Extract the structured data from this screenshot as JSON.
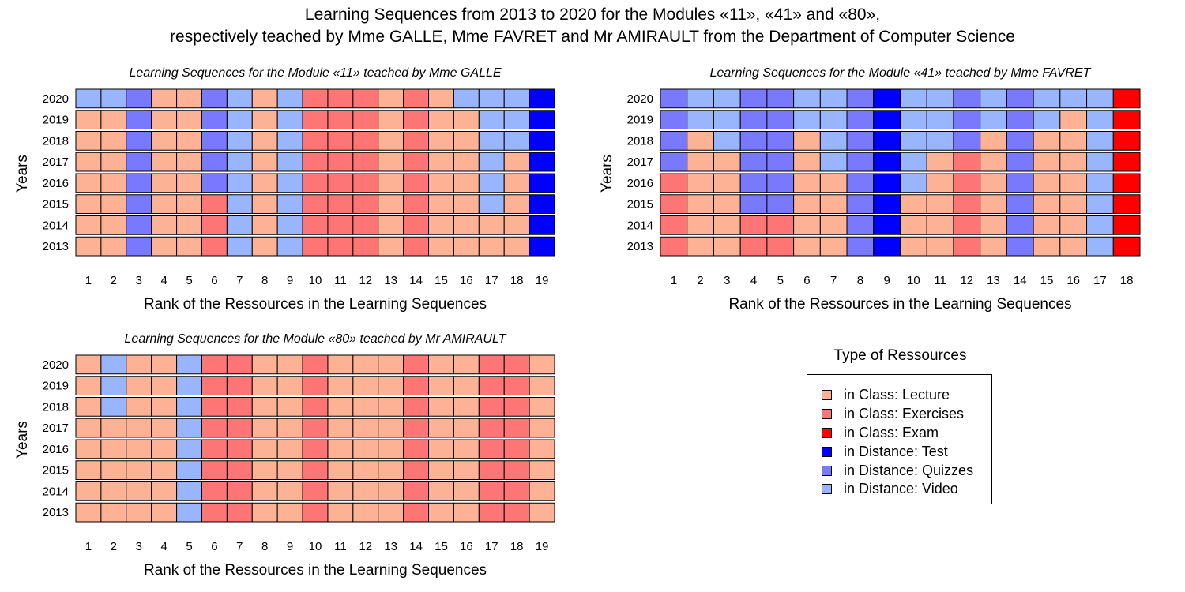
{
  "title_line1": "Learning Sequences from 2013 to 2020 for the Modules «11», «41» and «80»,",
  "title_line2": "respectively teached by Mme GALLE, Mme FAVRET and Mr AMIRAULT from the Department of Computer Science",
  "legend": {
    "title": "Type of Ressources",
    "items": [
      {
        "key": "L",
        "label": "in Class: Lecture",
        "color": "#FDB296"
      },
      {
        "key": "E",
        "label": "in Class: Exercises",
        "color": "#FE7575"
      },
      {
        "key": "X",
        "label": "in Class: Exam",
        "color": "#FE0000"
      },
      {
        "key": "T",
        "label": "in Distance: Test",
        "color": "#0000FE"
      },
      {
        "key": "Q",
        "label": "in Distance: Quizzes",
        "color": "#7979FD"
      },
      {
        "key": "V",
        "label": "in Distance: Video",
        "color": "#99B5FD"
      }
    ]
  },
  "chart_data": [
    {
      "type": "heatmap",
      "title": "Learning Sequences for the Module «11» teached by Mme GALLE",
      "xlabel": "Rank of the Ressources in the Learning Sequences",
      "ylabel": "Years",
      "x": [
        1,
        2,
        3,
        4,
        5,
        6,
        7,
        8,
        9,
        10,
        11,
        12,
        13,
        14,
        15,
        16,
        17,
        18,
        19
      ],
      "y": [
        2020,
        2019,
        2018,
        2017,
        2016,
        2015,
        2014,
        2013
      ],
      "rows": [
        "VVQLLQVLVEEELELVVVT",
        "LLQLLQVLVEEELELLVVT",
        "LLQLLQVLVEEELELLVVT",
        "LLQLLQVLVEEELELLVLT",
        "LLQLLQVLVEEELELLVLT",
        "LLQLLEVLVEEELELLVLT",
        "LLQLLEVLVEEELELLLLT",
        "LLQLLEVLVEEELELLLLT"
      ]
    },
    {
      "type": "heatmap",
      "title": "Learning Sequences for the Module «41» teached by Mme FAVRET",
      "xlabel": "Rank of the Ressources in the Learning Sequences",
      "ylabel": "Years",
      "x": [
        1,
        2,
        3,
        4,
        5,
        6,
        7,
        8,
        9,
        10,
        11,
        12,
        13,
        14,
        15,
        16,
        17,
        18
      ],
      "y": [
        2020,
        2019,
        2018,
        2017,
        2016,
        2015,
        2014,
        2013
      ],
      "rows": [
        "QVVQQVVQTVVQVQVVVX",
        "QVVQQVVQTVVQVQVLVX",
        "QLVQQLVQTVVQLQLLVX",
        "QLLQQLVQTVLELQLLVX",
        "ELLQQLLQTVLELQLLVX",
        "ELLQQLLQTLLELQLLVX",
        "ELLEELLQTLLELQLLVX",
        "ELLEELLQTLLELQLLVX"
      ]
    },
    {
      "type": "heatmap",
      "title": "Learning Sequences for the Module «80» teached by Mr AMIRAULT",
      "xlabel": "Rank of the Ressources in the Learning Sequences",
      "ylabel": "Years",
      "x": [
        1,
        2,
        3,
        4,
        5,
        6,
        7,
        8,
        9,
        10,
        11,
        12,
        13,
        14,
        15,
        16,
        17,
        18,
        19
      ],
      "y": [
        2020,
        2019,
        2018,
        2017,
        2016,
        2015,
        2014,
        2013
      ],
      "rows": [
        "LVLLVEELLELLLELLEEL",
        "LVLLVEELLELLLELLEEL",
        "LVLLVEELLELLLELLEEL",
        "LLLLVEELLELLLELLEEL",
        "LLLLVEELLELLLELLEEL",
        "LLLLVEELLELLLELLEEL",
        "LLLLVEELLELLLELLEEL",
        "LLLLVEELLELLLELLEEL"
      ]
    }
  ]
}
